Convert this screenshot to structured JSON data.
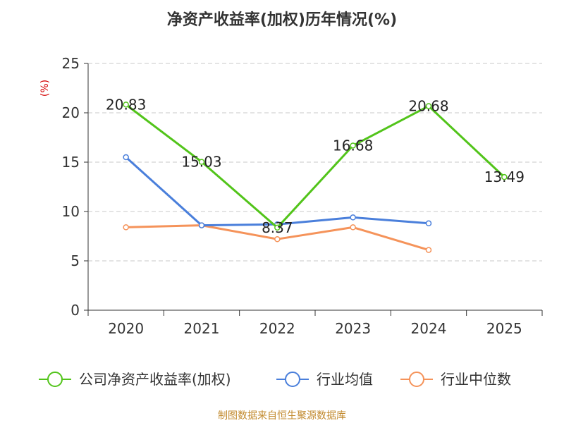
{
  "chart_data": {
    "type": "line",
    "title": "净资产收益率(加权)历年情况(%)",
    "ylabel": "(%)",
    "xlabel": "",
    "categories": [
      "2020",
      "2021",
      "2022",
      "2023",
      "2024",
      "2025"
    ],
    "ylim": [
      0,
      25
    ],
    "yticks": [
      0,
      5,
      10,
      15,
      20,
      25
    ],
    "grid": true,
    "legend_position": "bottom",
    "series": [
      {
        "name": "公司净资产收益率(加权)",
        "color": "#52c41a",
        "values": [
          20.83,
          15.03,
          8.37,
          16.68,
          20.68,
          13.49
        ],
        "labels": [
          "20.83",
          "15.03",
          "8.37",
          "16.68",
          "20.68",
          "13.49"
        ]
      },
      {
        "name": "行业均值",
        "color": "#4a7fdb",
        "values": [
          15.5,
          8.6,
          8.7,
          9.4,
          8.8,
          null
        ]
      },
      {
        "name": "行业中位数",
        "color": "#f5935a",
        "values": [
          8.4,
          8.6,
          7.2,
          8.4,
          6.1,
          null
        ]
      }
    ],
    "source": "制图数据来自恒生聚源数据库"
  }
}
